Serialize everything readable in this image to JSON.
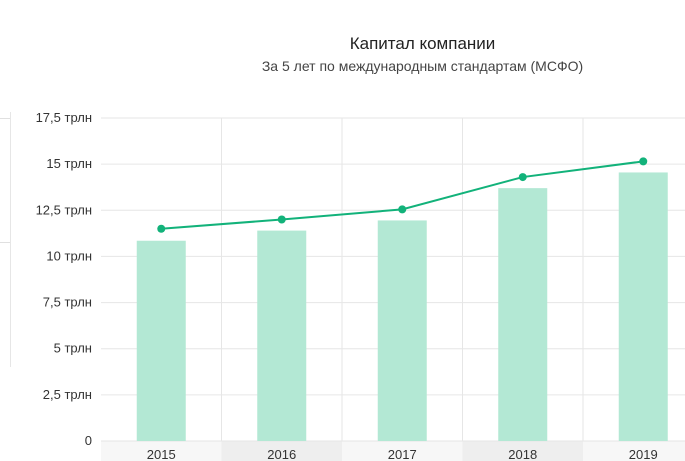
{
  "chart_data": {
    "type": "bar",
    "title": "Капитал компании",
    "subtitle": "За 5 лет по международным стандартам (МСФО)",
    "xlabel": "",
    "ylabel": "",
    "categories": [
      "2015",
      "2016",
      "2017",
      "2018",
      "2019"
    ],
    "series": [
      {
        "type": "bar",
        "values": [
          10.85,
          11.4,
          11.95,
          13.7,
          14.55
        ]
      },
      {
        "type": "line",
        "values": [
          11.5,
          12.0,
          12.55,
          14.3,
          15.15
        ]
      }
    ],
    "ylim": [
      0,
      17.5
    ],
    "yticks": [
      0,
      2.5,
      5,
      7.5,
      10,
      12.5,
      15,
      17.5
    ],
    "ytick_labels": [
      "0",
      "2,5 трлн",
      "5 трлн",
      "7,5 трлн",
      "10 трлн",
      "12,5 трлн",
      "15 трлн",
      "17,5 трлн"
    ],
    "grid": true,
    "colors": {
      "bar": "#b3e8d4",
      "line": "#12b27a",
      "grid": "#e6e6e6",
      "axis_band_alt": "#eeeeee",
      "axis_band": "#f7f7f7"
    }
  }
}
